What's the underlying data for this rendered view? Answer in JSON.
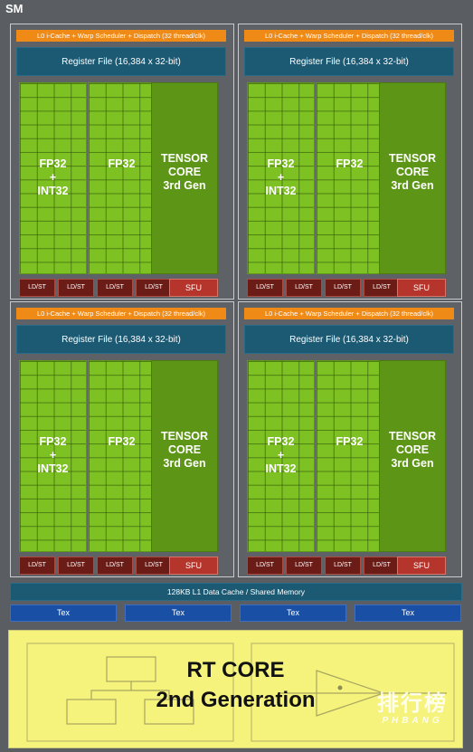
{
  "title": "SM",
  "partitions": [
    {
      "pipeline": "L0 i-Cache + Warp Scheduler + Dispatch (32 thread/clk)",
      "register_file": "Register File (16,384 x 32-bit)",
      "fp32_int32": [
        "FP32",
        "+",
        "INT32"
      ],
      "fp32": "FP32",
      "tensor_core": [
        "TENSOR",
        "CORE",
        "3rd Gen"
      ],
      "ldst": [
        "LD/ST",
        "LD/ST",
        "LD/ST",
        "LD/ST"
      ],
      "sfu": "SFU"
    },
    {
      "pipeline": "L0 i-Cache + Warp Scheduler + Dispatch (32 thread/clk)",
      "register_file": "Register File (16,384 x 32-bit)",
      "fp32_int32": [
        "FP32",
        "+",
        "INT32"
      ],
      "fp32": "FP32",
      "tensor_core": [
        "TENSOR",
        "CORE",
        "3rd Gen"
      ],
      "ldst": [
        "LD/ST",
        "LD/ST",
        "LD/ST",
        "LD/ST"
      ],
      "sfu": "SFU"
    },
    {
      "pipeline": "L0 i-Cache + Warp Scheduler + Dispatch (32 thread/clk)",
      "register_file": "Register File (16,384 x 32-bit)",
      "fp32_int32": [
        "FP32",
        "+",
        "INT32"
      ],
      "fp32": "FP32",
      "tensor_core": [
        "TENSOR",
        "CORE",
        "3rd Gen"
      ],
      "ldst": [
        "LD/ST",
        "LD/ST",
        "LD/ST",
        "LD/ST"
      ],
      "sfu": "SFU"
    },
    {
      "pipeline": "L0 i-Cache + Warp Scheduler + Dispatch (32 thread/clk)",
      "register_file": "Register File (16,384 x 32-bit)",
      "fp32_int32": [
        "FP32",
        "+",
        "INT32"
      ],
      "fp32": "FP32",
      "tensor_core": [
        "TENSOR",
        "CORE",
        "3rd Gen"
      ],
      "ldst": [
        "LD/ST",
        "LD/ST",
        "LD/ST",
        "LD/ST"
      ],
      "sfu": "SFU"
    }
  ],
  "l1_cache": "128KB L1 Data Cache / Shared Memory",
  "tex_units": [
    "Tex",
    "Tex",
    "Tex",
    "Tex"
  ],
  "rt_core": [
    "RT CORE",
    "2nd Generation"
  ],
  "watermark": {
    "cn": "排行榜",
    "en": "PHBANG"
  },
  "colors": {
    "pipeline_bar": "#f08a17",
    "register_file": "#1c5a73",
    "cuda_core": "#7ec123",
    "tensor_core": "#5d9617",
    "ldst": "#6b1c16",
    "sfu": "#b5352c",
    "tex": "#1a4fa6",
    "rt_core": "#f5f37c"
  }
}
